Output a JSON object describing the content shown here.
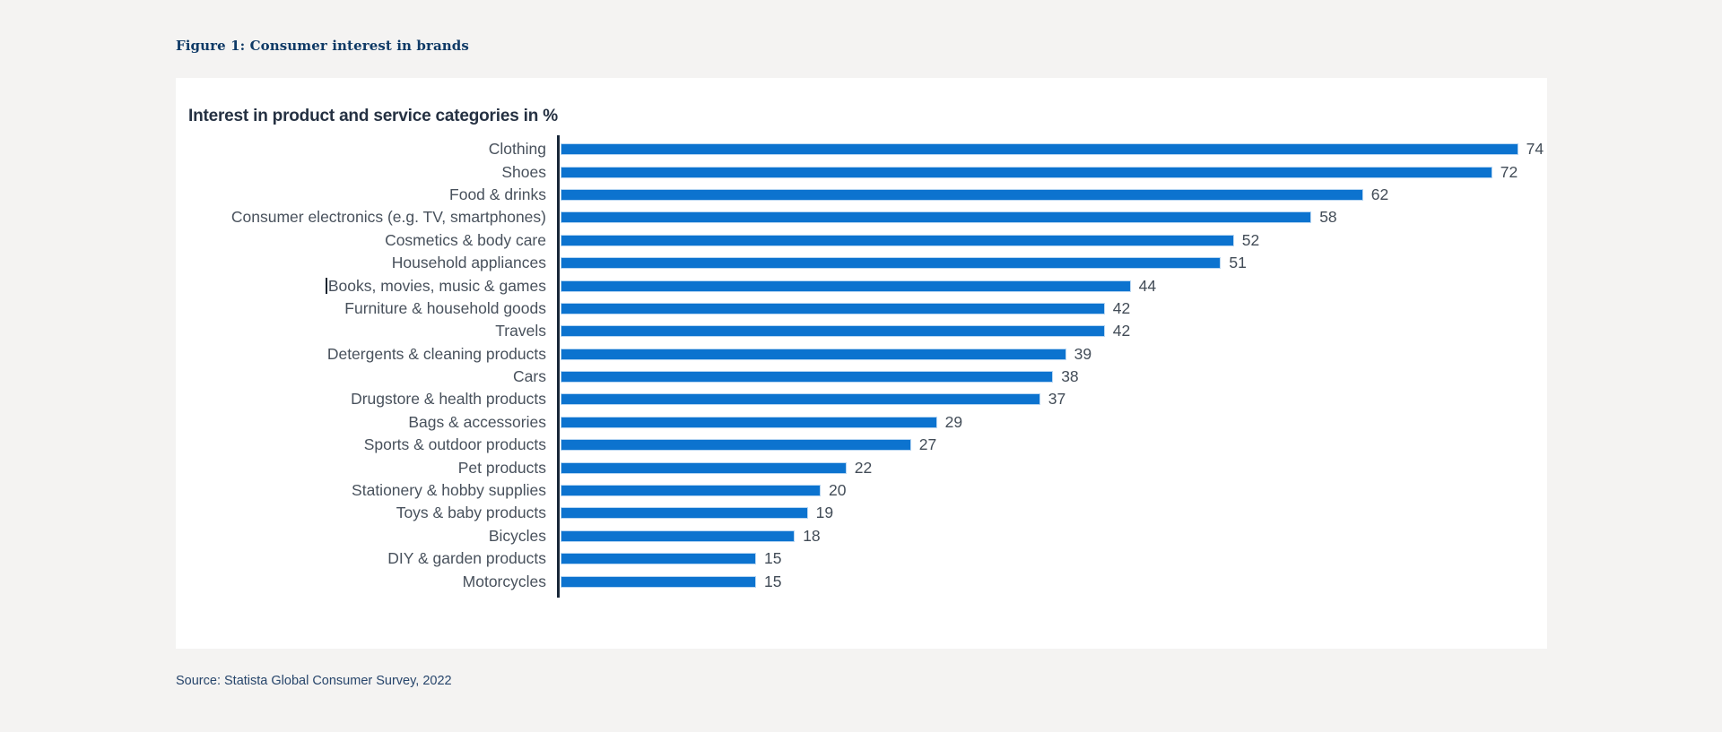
{
  "page": {
    "background": "#f4f3f2",
    "card_background": "#ffffff",
    "figure_title": "Figure 1: Consumer interest in brands",
    "figure_title_color": "#0f3a66",
    "source": "Source: Statista Global Consumer Survey, 2022",
    "source_color": "#27456b"
  },
  "chart_data": {
    "type": "bar",
    "orientation": "horizontal",
    "title": "Interest in product and service categories in %",
    "title_color": "#253142",
    "categories": [
      "Clothing",
      "Shoes",
      "Food & drinks",
      "Consumer electronics (e.g. TV, smartphones)",
      "Cosmetics & body care",
      "Household appliances",
      "Books, movies, music & games",
      "Furniture & household goods",
      "Travels",
      "Detergents & cleaning products",
      "Cars",
      "Drugstore & health products",
      "Bags & accessories",
      "Sports & outdoor products",
      "Pet products",
      "Stationery & hobby supplies",
      "Toys & baby products",
      "Bicycles",
      "DIY & garden products",
      "Motorcycles"
    ],
    "values": [
      74,
      72,
      62,
      58,
      52,
      51,
      44,
      42,
      42,
      39,
      38,
      37,
      29,
      27,
      22,
      20,
      19,
      18,
      15,
      15
    ],
    "xlim": [
      0,
      78
    ],
    "grid": false,
    "legend": false,
    "value_labels_shown": true,
    "bar_color": "#0c73cf",
    "bar_edge_color": "#b7d6f2",
    "axis_line_color": "#182739",
    "label_color": "#48515c",
    "value_label_color": "#424c57",
    "text_cursor_before_index": 6
  }
}
